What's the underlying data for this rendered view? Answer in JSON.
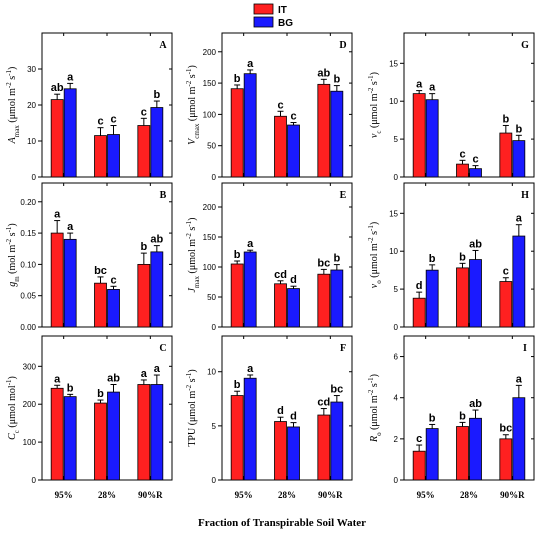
{
  "legend": [
    {
      "name": "IT",
      "color": "#ff2020"
    },
    {
      "name": "BG",
      "color": "#1a1aff"
    }
  ],
  "x_axis_title": "Fraction of Transpirable Soil Water",
  "chart_data": [
    {
      "type": "bar",
      "panel": "A",
      "ylabel_html": [
        "A",
        "max",
        " (μmol m",
        "-2",
        " s",
        "-1",
        ")"
      ],
      "ylim": [
        0,
        40
      ],
      "yticks": [
        0,
        10,
        20,
        30
      ],
      "categories": [
        "95%",
        "28%",
        "90%R"
      ],
      "series": [
        {
          "name": "IT",
          "values": [
            21.5,
            11.5,
            14.3
          ],
          "errors": [
            1.5,
            2.2,
            2.0
          ],
          "letters": [
            "ab",
            "c",
            "c"
          ]
        },
        {
          "name": "BG",
          "values": [
            24.5,
            11.8,
            19.3
          ],
          "errors": [
            1.5,
            2.5,
            1.8
          ],
          "letters": [
            "a",
            "c",
            "b"
          ]
        }
      ]
    },
    {
      "type": "bar",
      "panel": "D",
      "ylabel_html": [
        "V",
        "cmax",
        " (μmol m",
        "-2",
        " s",
        "-1",
        ")"
      ],
      "ylim": [
        0,
        230
      ],
      "yticks": [
        0,
        50,
        100,
        150,
        200
      ],
      "categories": [
        "95%",
        "28%",
        "90%R"
      ],
      "series": [
        {
          "name": "IT",
          "values": [
            141,
            97,
            148
          ],
          "errors": [
            6,
            8,
            8
          ],
          "letters": [
            "b",
            "c",
            "ab"
          ]
        },
        {
          "name": "BG",
          "values": [
            165,
            83,
            137
          ],
          "errors": [
            6,
            4,
            9
          ],
          "letters": [
            "a",
            "c",
            "b"
          ]
        }
      ]
    },
    {
      "type": "bar",
      "panel": "G",
      "ylabel_html": [
        "v",
        "c",
        " (μmol m",
        "-2",
        " s",
        "-1",
        ")"
      ],
      "ylim": [
        0,
        19
      ],
      "yticks": [
        0,
        5,
        10,
        15
      ],
      "categories": [
        "95%",
        "28%",
        "90%R"
      ],
      "series": [
        {
          "name": "IT",
          "values": [
            11.0,
            1.7,
            5.8
          ],
          "errors": [
            0.4,
            0.5,
            1.0
          ],
          "letters": [
            "a",
            "c",
            "b"
          ]
        },
        {
          "name": "BG",
          "values": [
            10.2,
            1.1,
            4.8
          ],
          "errors": [
            0.8,
            0.4,
            0.7
          ],
          "letters": [
            "a",
            "c",
            "b"
          ]
        }
      ]
    },
    {
      "type": "bar",
      "panel": "B",
      "ylabel_html": [
        "g",
        "m",
        " (mol m",
        "-2",
        " s",
        "-1",
        ")"
      ],
      "ylim": [
        0,
        0.23
      ],
      "yticks": [
        0.0,
        0.05,
        0.1,
        0.15,
        0.2
      ],
      "tick_decimals": 2,
      "categories": [
        "95%",
        "28%",
        "90%R"
      ],
      "series": [
        {
          "name": "IT",
          "values": [
            0.15,
            0.07,
            0.1
          ],
          "errors": [
            0.02,
            0.01,
            0.018
          ],
          "letters": [
            "a",
            "bc",
            "b"
          ]
        },
        {
          "name": "BG",
          "values": [
            0.14,
            0.06,
            0.12
          ],
          "errors": [
            0.01,
            0.005,
            0.01
          ],
          "letters": [
            "a",
            "c",
            "ab"
          ]
        }
      ]
    },
    {
      "type": "bar",
      "panel": "E",
      "ylabel_html": [
        "J",
        "max",
        " (μmol m",
        "-2",
        " s",
        "-1",
        ")"
      ],
      "ylim": [
        0,
        240
      ],
      "yticks": [
        0,
        50,
        100,
        150,
        200
      ],
      "categories": [
        "95%",
        "28%",
        "90%R"
      ],
      "series": [
        {
          "name": "IT",
          "values": [
            105,
            72,
            88
          ],
          "errors": [
            5,
            5,
            8
          ],
          "letters": [
            "b",
            "cd",
            "bc"
          ]
        },
        {
          "name": "BG",
          "values": [
            125,
            64,
            95
          ],
          "errors": [
            3,
            4,
            9
          ],
          "letters": [
            "a",
            "d",
            "b"
          ]
        }
      ]
    },
    {
      "type": "bar",
      "panel": "H",
      "ylabel_html": [
        "v",
        "o",
        " (μmol m",
        "-2",
        " s",
        "-1",
        ")"
      ],
      "ylim": [
        0,
        19
      ],
      "yticks": [
        0,
        5,
        10,
        15
      ],
      "categories": [
        "95%",
        "28%",
        "90%R"
      ],
      "series": [
        {
          "name": "IT",
          "values": [
            3.8,
            7.8,
            6.0
          ],
          "errors": [
            0.8,
            0.6,
            0.5
          ],
          "letters": [
            "d",
            "b",
            "c"
          ]
        },
        {
          "name": "BG",
          "values": [
            7.5,
            8.9,
            12.0
          ],
          "errors": [
            0.7,
            1.2,
            1.5
          ],
          "letters": [
            "b",
            "ab",
            "a"
          ]
        }
      ]
    },
    {
      "type": "bar",
      "panel": "C",
      "ylabel_html": [
        "C",
        "c",
        " (μmol mol",
        "-1",
        ")"
      ],
      "ylim": [
        0,
        380
      ],
      "yticks": [
        0,
        100,
        200,
        300
      ],
      "categories": [
        "95%",
        "28%",
        "90%R"
      ],
      "series": [
        {
          "name": "IT",
          "values": [
            242,
            203,
            252
          ],
          "errors": [
            8,
            8,
            12
          ],
          "letters": [
            "a",
            "b",
            "a"
          ]
        },
        {
          "name": "BG",
          "values": [
            220,
            232,
            252
          ],
          "errors": [
            6,
            20,
            25
          ],
          "letters": [
            "b",
            "ab",
            "a"
          ]
        }
      ]
    },
    {
      "type": "bar",
      "panel": "F",
      "ylabel_html": [
        "TPU (μmol m",
        "-2",
        " s",
        "-1",
        ")"
      ],
      "ylim": [
        0,
        13.3
      ],
      "yticks": [
        0,
        5,
        10
      ],
      "categories": [
        "95%",
        "28%",
        "90%R"
      ],
      "series": [
        {
          "name": "IT",
          "values": [
            7.8,
            5.4,
            6.0
          ],
          "errors": [
            0.4,
            0.4,
            0.6
          ],
          "letters": [
            "b",
            "d",
            "cd"
          ]
        },
        {
          "name": "BG",
          "values": [
            9.4,
            4.9,
            7.2
          ],
          "errors": [
            0.3,
            0.4,
            0.6
          ],
          "letters": [
            "a",
            "d",
            "bc"
          ]
        }
      ]
    },
    {
      "type": "bar",
      "panel": "I",
      "ylabel_html": [
        "R",
        "o",
        " (μmol m",
        "-2",
        " s",
        "-1",
        ")"
      ],
      "ylim": [
        0,
        7
      ],
      "yticks": [
        0,
        2,
        4,
        6
      ],
      "categories": [
        "95%",
        "28%",
        "90%R"
      ],
      "series": [
        {
          "name": "IT",
          "values": [
            1.4,
            2.6,
            2.0
          ],
          "errors": [
            0.3,
            0.2,
            0.2
          ],
          "letters": [
            "c",
            "b",
            "bc"
          ]
        },
        {
          "name": "BG",
          "values": [
            2.5,
            3.0,
            4.0
          ],
          "errors": [
            0.2,
            0.4,
            0.6
          ],
          "letters": [
            "b",
            "ab",
            "a"
          ]
        }
      ]
    }
  ]
}
